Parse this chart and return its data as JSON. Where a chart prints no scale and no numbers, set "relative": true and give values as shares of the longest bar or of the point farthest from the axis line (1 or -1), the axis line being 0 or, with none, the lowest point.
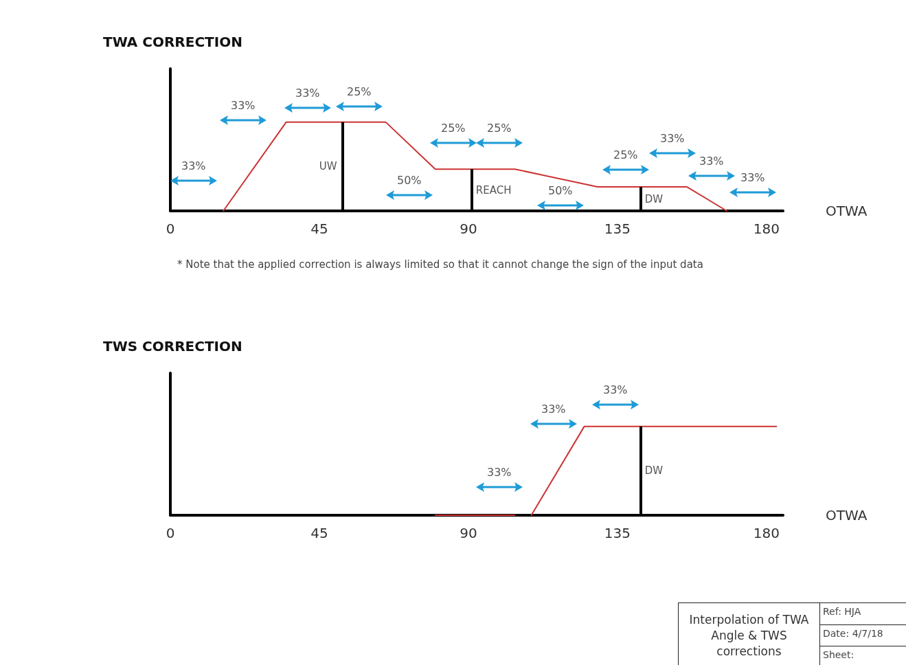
{
  "chart_data": [
    {
      "type": "line",
      "title": "TWA CORRECTION",
      "xlabel": "OTWA",
      "relative": true,
      "marker": "none",
      "xlim": [
        0,
        185
      ],
      "xticks": [
        0,
        45,
        90,
        135,
        180
      ],
      "series": [
        {
          "color": "#cc3333",
          "x": [
            16,
            35,
            65,
            80,
            104,
            129,
            156,
            168
          ],
          "values": [
            0,
            1,
            1,
            0.47,
            0.47,
            0.27,
            0.27,
            0
          ]
        }
      ],
      "ref_lines": [
        {
          "axis": "x",
          "value": 52,
          "label": "UW",
          "color": "#000000"
        },
        {
          "axis": "x",
          "value": 91,
          "label": "REACH",
          "color": "#000000"
        },
        {
          "axis": "x",
          "value": 142,
          "label": "DW",
          "color": "#000000"
        }
      ],
      "annotations": [
        "33%",
        "33%",
        "33%",
        "25%",
        "50%",
        "25%",
        "25%",
        "50%",
        "25%",
        "33%",
        "33%",
        "33%",
        "* Note that the applied correction is always limited so that it cannot change the sign of the input data"
      ]
    },
    {
      "type": "line",
      "title": "TWS CORRECTION",
      "xlabel": "OTWA",
      "relative": true,
      "marker": "none",
      "xlim": [
        0,
        185
      ],
      "xticks": [
        0,
        45,
        90,
        135,
        180
      ],
      "series": [
        {
          "color": "#cc3333",
          "x": [
            80,
            104,
            106,
            109,
            125,
            183
          ],
          "values": [
            0,
            0,
            null,
            0,
            1,
            1
          ]
        }
      ],
      "ref_lines": [
        {
          "axis": "x",
          "value": 142,
          "label": "DW",
          "color": "#000000"
        }
      ],
      "annotations": [
        "33%",
        "33%",
        "33%",
        "Interpolation of TWA Angle & TWS corrections",
        "Ref: HJA",
        "Date: 4/7/18",
        "Sheet:"
      ]
    }
  ]
}
